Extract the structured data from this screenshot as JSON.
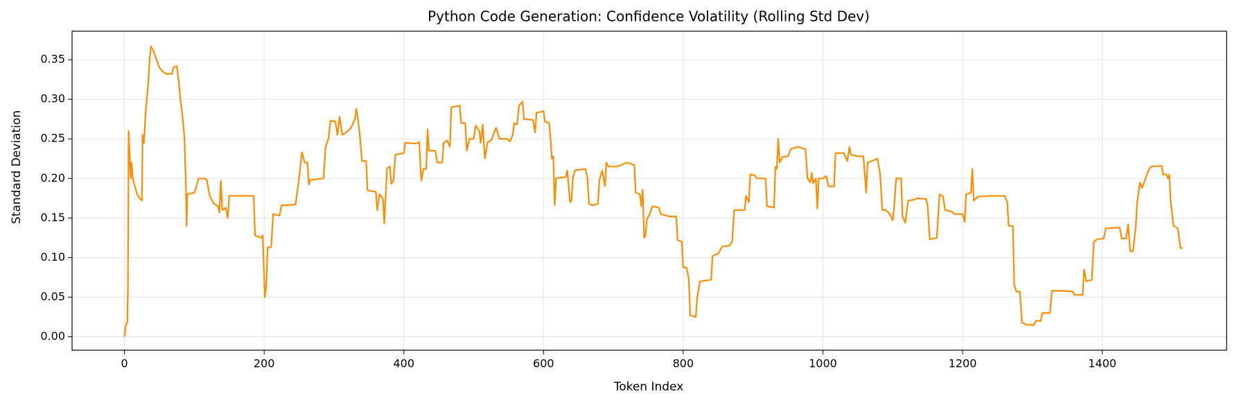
{
  "chart_data": {
    "type": "line",
    "title": "Python Code Generation: Confidence Volatility (Rolling Std Dev)",
    "x_label": "Token Index",
    "y_label": "Standard Deviation",
    "color": "#ff8c00",
    "grid": true,
    "xlim": [
      -75,
      1578
    ],
    "ylim": [
      -0.017,
      0.386
    ],
    "xticks": [
      0,
      200,
      400,
      600,
      800,
      1000,
      1200,
      1400
    ],
    "yticks": [
      {
        "value": 0,
        "label": "0.00"
      },
      {
        "value": 0.05,
        "label": "0.05"
      },
      {
        "value": 0.1,
        "label": "0.10"
      },
      {
        "value": 0.15,
        "label": "0.15"
      },
      {
        "value": 0.2,
        "label": "0.20"
      },
      {
        "value": 0.25,
        "label": "0.25"
      },
      {
        "value": 0.3,
        "label": "0.30"
      },
      {
        "value": 0.35,
        "label": "0.35"
      }
    ],
    "x": [
      0,
      2,
      4,
      5,
      6,
      8,
      9,
      10,
      12,
      15,
      18,
      22,
      25,
      26,
      28,
      30,
      32,
      34,
      36,
      38,
      42,
      46,
      50,
      55,
      60,
      68,
      70,
      75,
      78,
      80,
      83,
      86,
      88,
      89,
      90,
      100,
      103,
      106,
      115,
      118,
      122,
      128,
      134,
      136,
      138,
      140,
      145,
      148,
      150,
      170,
      185,
      187,
      196,
      198,
      201,
      203,
      205,
      210,
      213,
      222,
      225,
      245,
      250,
      254,
      258,
      262,
      264,
      266,
      285,
      288,
      292,
      295,
      302,
      305,
      308,
      312,
      320,
      325,
      330,
      332,
      335,
      337,
      340,
      346,
      348,
      360,
      362,
      365,
      370,
      372,
      376,
      380,
      382,
      385,
      388,
      400,
      402,
      418,
      422,
      425,
      428,
      432,
      434,
      436,
      445,
      448,
      455,
      457,
      462,
      466,
      468,
      480,
      482,
      488,
      490,
      494,
      500,
      503,
      508,
      510,
      513,
      516,
      520,
      525,
      532,
      537,
      548,
      552,
      556,
      558,
      562,
      565,
      570,
      572,
      585,
      588,
      590,
      600,
      602,
      608,
      610,
      612,
      614,
      616,
      618,
      632,
      634,
      638,
      640,
      642,
      645,
      660,
      663,
      665,
      670,
      678,
      680,
      684,
      688,
      690,
      693,
      705,
      712,
      716,
      720,
      730,
      732,
      738,
      740,
      742,
      744,
      746,
      748,
      752,
      756,
      765,
      768,
      780,
      790,
      792,
      798,
      800,
      805,
      808,
      810,
      818,
      820,
      824,
      840,
      842,
      850,
      856,
      866,
      870,
      873,
      876,
      888,
      890,
      894,
      896,
      902,
      906,
      918,
      920,
      930,
      932,
      934,
      936,
      938,
      942,
      950,
      954,
      964,
      975,
      978,
      982,
      984,
      986,
      990,
      992,
      994,
      1000,
      1005,
      1008,
      1016,
      1018,
      1030,
      1035,
      1038,
      1040,
      1050,
      1058,
      1062,
      1064,
      1070,
      1078,
      1082,
      1085,
      1090,
      1096,
      1100,
      1102,
      1105,
      1112,
      1114,
      1118,
      1122,
      1130,
      1135,
      1148,
      1150,
      1153,
      1163,
      1167,
      1172,
      1175,
      1185,
      1188,
      1200,
      1203,
      1205,
      1212,
      1214,
      1216,
      1222,
      1240,
      1260,
      1264,
      1266,
      1272,
      1274,
      1277,
      1282,
      1285,
      1292,
      1302,
      1305,
      1312,
      1314,
      1325,
      1328,
      1345,
      1358,
      1360,
      1372,
      1374,
      1377,
      1385,
      1388,
      1392,
      1402,
      1405,
      1425,
      1428,
      1434,
      1437,
      1440,
      1444,
      1448,
      1450,
      1454,
      1457,
      1462,
      1466,
      1470,
      1485,
      1487,
      1492,
      1494,
      1496,
      1498,
      1502,
      1508,
      1510,
      1512,
      1515
    ],
    "values": [
      0,
      0.015,
      0.018,
      0.06,
      0.26,
      0.22,
      0.2,
      0.22,
      0.2,
      0.19,
      0.18,
      0.175,
      0.172,
      0.255,
      0.245,
      0.28,
      0.3,
      0.32,
      0.35,
      0.367,
      0.36,
      0.35,
      0.34,
      0.335,
      0.332,
      0.332,
      0.34,
      0.342,
      0.32,
      0.3,
      0.28,
      0.25,
      0.19,
      0.14,
      0.18,
      0.182,
      0.19,
      0.2,
      0.2,
      0.198,
      0.178,
      0.168,
      0.165,
      0.157,
      0.197,
      0.16,
      0.163,
      0.15,
      0.178,
      0.178,
      0.178,
      0.128,
      0.125,
      0.128,
      0.05,
      0.065,
      0.113,
      0.113,
      0.155,
      0.153,
      0.166,
      0.167,
      0.2,
      0.233,
      0.22,
      0.22,
      0.192,
      0.198,
      0.2,
      0.24,
      0.25,
      0.273,
      0.272,
      0.255,
      0.278,
      0.255,
      0.26,
      0.265,
      0.275,
      0.288,
      0.27,
      0.255,
      0.222,
      0.222,
      0.185,
      0.183,
      0.16,
      0.18,
      0.175,
      0.143,
      0.213,
      0.215,
      0.193,
      0.197,
      0.23,
      0.232,
      0.245,
      0.244,
      0.246,
      0.197,
      0.212,
      0.212,
      0.262,
      0.235,
      0.235,
      0.22,
      0.22,
      0.245,
      0.248,
      0.24,
      0.29,
      0.292,
      0.27,
      0.27,
      0.235,
      0.25,
      0.25,
      0.267,
      0.26,
      0.245,
      0.268,
      0.225,
      0.246,
      0.248,
      0.264,
      0.25,
      0.25,
      0.247,
      0.255,
      0.27,
      0.268,
      0.292,
      0.297,
      0.275,
      0.274,
      0.258,
      0.283,
      0.285,
      0.272,
      0.27,
      0.25,
      0.225,
      0.228,
      0.166,
      0.2,
      0.202,
      0.21,
      0.17,
      0.172,
      0.2,
      0.21,
      0.212,
      0.2,
      0.168,
      0.166,
      0.168,
      0.198,
      0.21,
      0.19,
      0.22,
      0.215,
      0.215,
      0.217,
      0.219,
      0.22,
      0.217,
      0.182,
      0.18,
      0.165,
      0.186,
      0.125,
      0.128,
      0.148,
      0.155,
      0.165,
      0.163,
      0.155,
      0.152,
      0.152,
      0.122,
      0.12,
      0.088,
      0.087,
      0.073,
      0.027,
      0.025,
      0.05,
      0.07,
      0.072,
      0.102,
      0.105,
      0.114,
      0.115,
      0.12,
      0.16,
      0.16,
      0.16,
      0.178,
      0.17,
      0.205,
      0.204,
      0.2,
      0.2,
      0.165,
      0.163,
      0.215,
      0.212,
      0.25,
      0.22,
      0.227,
      0.228,
      0.237,
      0.24,
      0.237,
      0.2,
      0.195,
      0.207,
      0.194,
      0.2,
      0.162,
      0.2,
      0.2,
      0.203,
      0.19,
      0.19,
      0.232,
      0.232,
      0.222,
      0.24,
      0.23,
      0.228,
      0.228,
      0.182,
      0.22,
      0.222,
      0.225,
      0.205,
      0.16,
      0.16,
      0.155,
      0.147,
      0.165,
      0.2,
      0.2,
      0.152,
      0.144,
      0.172,
      0.173,
      0.175,
      0.174,
      0.165,
      0.123,
      0.125,
      0.18,
      0.177,
      0.16,
      0.158,
      0.155,
      0.155,
      0.145,
      0.18,
      0.182,
      0.212,
      0.172,
      0.177,
      0.178,
      0.178,
      0.17,
      0.14,
      0.14,
      0.065,
      0.057,
      0.057,
      0.018,
      0.015,
      0.015,
      0.02,
      0.02,
      0.03,
      0.03,
      0.058,
      0.058,
      0.057,
      0.053,
      0.053,
      0.085,
      0.07,
      0.072,
      0.12,
      0.123,
      0.124,
      0.137,
      0.138,
      0.124,
      0.124,
      0.142,
      0.108,
      0.108,
      0.14,
      0.17,
      0.195,
      0.188,
      0.2,
      0.21,
      0.215,
      0.216,
      0.205,
      0.205,
      0.2,
      0.205,
      0.17,
      0.14,
      0.137,
      0.125,
      0.112,
      0.112
    ]
  }
}
